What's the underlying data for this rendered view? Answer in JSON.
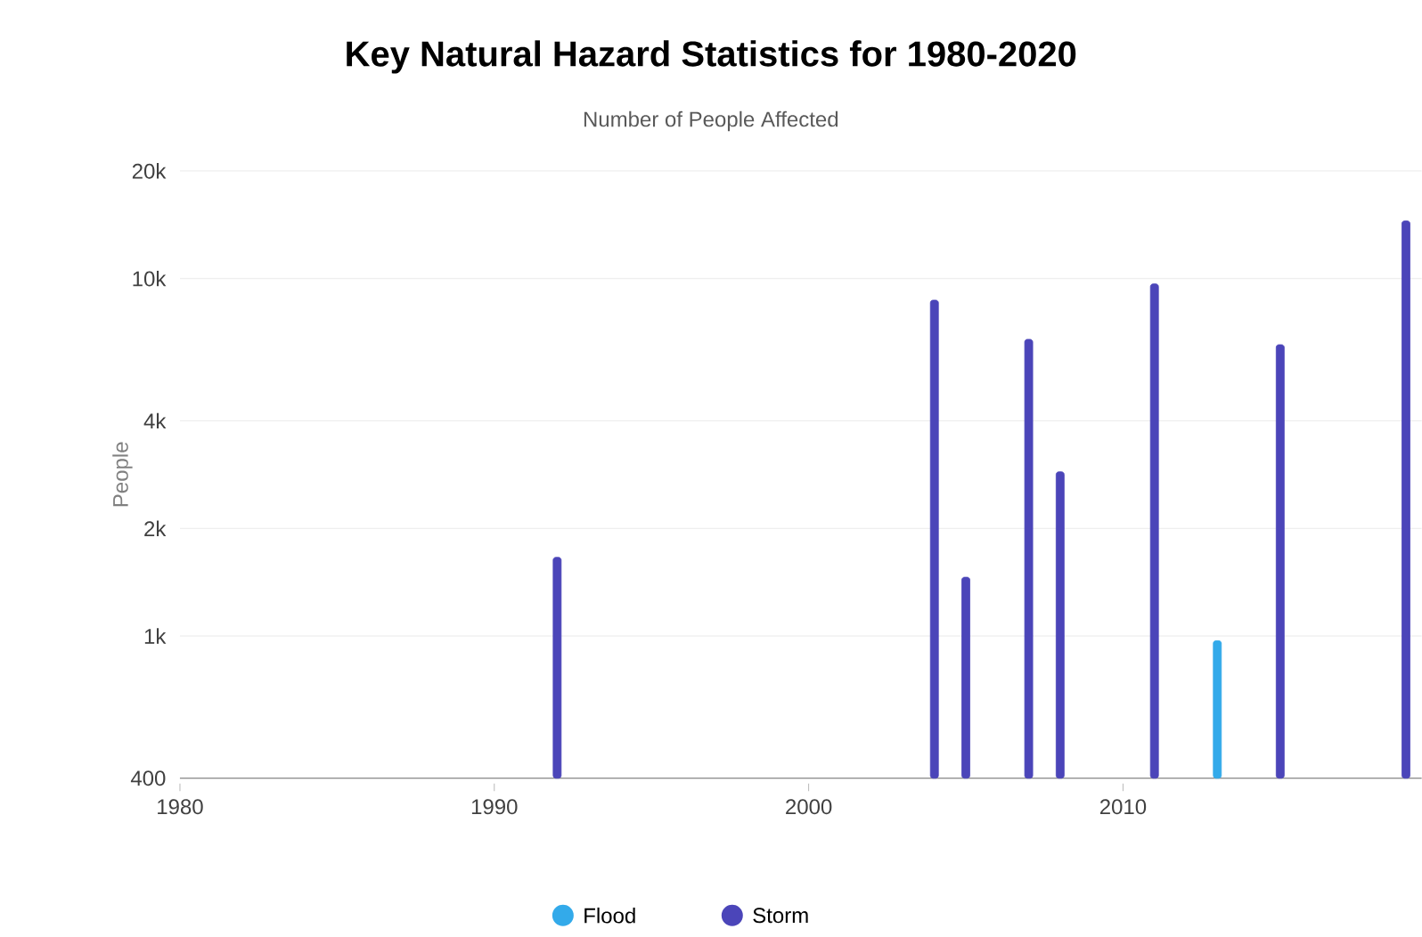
{
  "chart_data": {
    "type": "bar",
    "title": "Key Natural Hazard Statistics for 1980-2020",
    "subtitle": "Number of People Affected",
    "ylabel": "People",
    "series": [
      {
        "name": "Flood",
        "color": "#33aaea",
        "x": [
          2013
        ],
        "values": [
          970
        ]
      },
      {
        "name": "Storm",
        "color": "#4b45b9",
        "x": [
          1992,
          2004,
          2005,
          2007,
          2008,
          2011,
          2015,
          2019
        ],
        "values": [
          1660,
          8700,
          1460,
          6760,
          2880,
          9660,
          6530,
          14500
        ]
      }
    ],
    "log": "y",
    "xlim": [
      1980,
      2019.5
    ],
    "ylim": [
      400,
      20000
    ],
    "xticks": [
      1980,
      1990,
      2000,
      2010
    ],
    "yticks": [
      {
        "value": 400,
        "label": "400"
      },
      {
        "value": 1000,
        "label": "1k"
      },
      {
        "value": 2000,
        "label": "2k"
      },
      {
        "value": 4000,
        "label": "4k"
      },
      {
        "value": 10000,
        "label": "10k"
      },
      {
        "value": 20000,
        "label": "20k"
      }
    ],
    "grid": "y",
    "legend": "bottom"
  }
}
